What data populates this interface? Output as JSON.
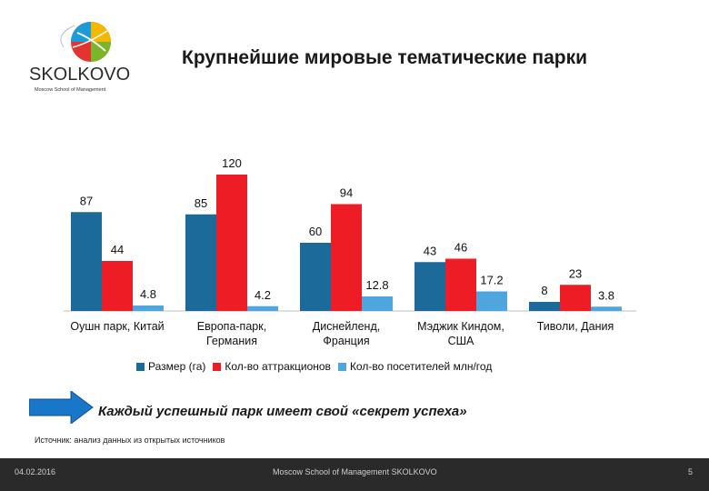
{
  "header": {
    "logo_text": "SKOLKOVO",
    "logo_subtext": "Moscow School of Management",
    "title": "Крупнейшие мировые тематические парки"
  },
  "chart_data": {
    "type": "bar",
    "categories": [
      [
        "Оушн парк, Китай"
      ],
      [
        "Европа-парк,",
        "Германия"
      ],
      [
        "Диснейленд,",
        "Франция"
      ],
      [
        "Мэджик Киндом,",
        "США"
      ],
      [
        "Тиволи, Дания"
      ]
    ],
    "series": [
      {
        "name": "Размер (га)",
        "color": "#1b6a99",
        "values": [
          87,
          85,
          60,
          43,
          8
        ]
      },
      {
        "name": "Кол-во аттракционов",
        "color": "#ee1c25",
        "values": [
          44,
          120,
          94,
          46,
          23
        ]
      },
      {
        "name": "Кол-во посетителей млн/год",
        "color": "#4fa6de",
        "values": [
          4.8,
          4.2,
          12.8,
          17.2,
          3.8
        ]
      }
    ],
    "ylim": [
      0,
      120
    ],
    "grid": false,
    "legend": "bottom"
  },
  "callout": {
    "text": "Каждый успешный парк имеет свой «секрет успеха»",
    "arrow_color": "#1877c9"
  },
  "source_note": "Источник: анализ данных из открытых источников",
  "footer": {
    "date": "04.02.2016",
    "center": "Moscow School of Management SKOLKOVO",
    "page": "5"
  }
}
